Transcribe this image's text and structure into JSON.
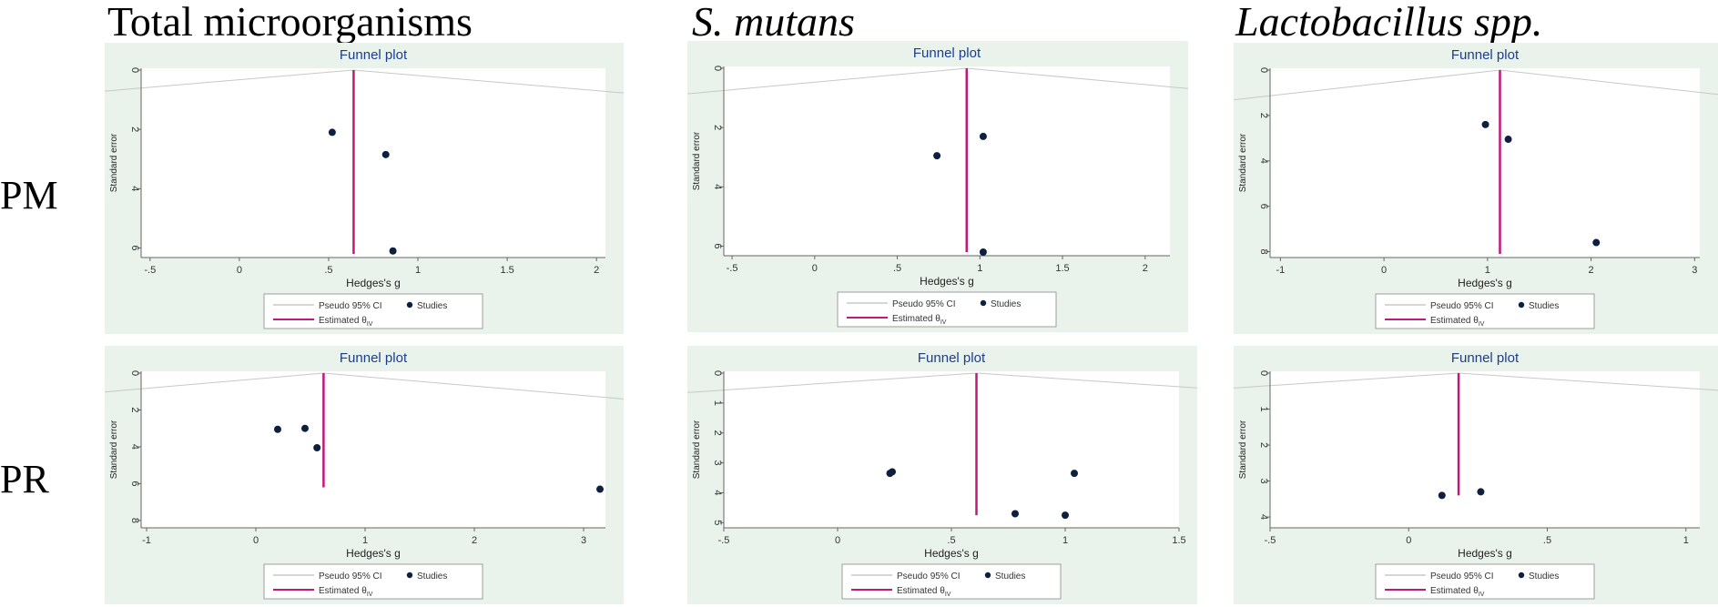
{
  "column_headers": [
    "Total microorganisms",
    "S. mutans",
    "Lactobacillus spp."
  ],
  "row_labels": [
    "PM",
    "PR"
  ],
  "colors": {
    "panel_bg": "#eaf2ec",
    "plot_bg": "#ffffff",
    "estimate_line": "#c0187c",
    "ci_line": "#c8c8c8",
    "study_dot": "#0e2040",
    "title": "#1a3e8c"
  },
  "chart_data": [
    {
      "id": "pm-total",
      "type": "scatter",
      "title": "Funnel plot",
      "xlabel": "Hedges's g",
      "ylabel": "Standard error",
      "xlim": [
        -0.55,
        2.05
      ],
      "ylim": [
        0,
        6.2
      ],
      "xticks": [
        -0.5,
        0,
        0.5,
        1,
        1.5,
        2
      ],
      "xtick_labels": [
        "-.5",
        "0",
        ".5",
        "1",
        "1.5",
        "2"
      ],
      "yticks": [
        0,
        2,
        4,
        6
      ],
      "ytick_labels": [
        "0",
        "2",
        "4",
        "6"
      ],
      "estimate": 0.64,
      "funnel_base": 6.2,
      "points": [
        {
          "x": 0.52,
          "y": 2.1
        },
        {
          "x": 0.82,
          "y": 2.85
        },
        {
          "x": 0.86,
          "y": 6.1
        }
      ],
      "legend": {
        "ci": "Pseudo 95% CI",
        "studies": "Studies",
        "est": "Estimated θ",
        "est_sub": "IV"
      }
    },
    {
      "id": "pm-smutans",
      "type": "scatter",
      "title": "Funnel plot",
      "xlabel": "Hedges's g",
      "ylabel": "Standard error",
      "xlim": [
        -0.55,
        2.15
      ],
      "ylim": [
        0,
        6.2
      ],
      "xticks": [
        -0.5,
        0,
        0.5,
        1,
        1.5,
        2
      ],
      "xtick_labels": [
        "-.5",
        "0",
        ".5",
        "1",
        "1.5",
        "2"
      ],
      "yticks": [
        0,
        2,
        4,
        6
      ],
      "ytick_labels": [
        "0",
        "2",
        "4",
        "6"
      ],
      "estimate": 0.92,
      "funnel_base": 6.2,
      "points": [
        {
          "x": 1.02,
          "y": 2.3
        },
        {
          "x": 0.74,
          "y": 2.95
        },
        {
          "x": 1.02,
          "y": 6.2
        }
      ],
      "legend": {
        "ci": "Pseudo 95% CI",
        "studies": "Studies",
        "est": "Estimated θ",
        "est_sub": "IV"
      }
    },
    {
      "id": "pm-lacto",
      "type": "scatter",
      "title": "Funnel plot",
      "xlabel": "Hedges's g",
      "ylabel": "Standard error",
      "xlim": [
        -1.1,
        3.05
      ],
      "ylim": [
        0,
        8.1
      ],
      "xticks": [
        -1,
        0,
        1,
        2,
        3
      ],
      "xtick_labels": [
        "-1",
        "0",
        "1",
        "2",
        "3"
      ],
      "yticks": [
        0,
        2,
        4,
        6,
        8
      ],
      "ytick_labels": [
        "0",
        "2",
        "4",
        "6",
        "8"
      ],
      "estimate": 1.12,
      "funnel_base": 8.1,
      "points": [
        {
          "x": 0.98,
          "y": 2.4
        },
        {
          "x": 1.2,
          "y": 3.05
        },
        {
          "x": 2.05,
          "y": 7.6
        }
      ],
      "legend": {
        "ci": "Pseudo 95% CI",
        "studies": "Studies",
        "est": "Estimated θ",
        "est_sub": "IV"
      }
    },
    {
      "id": "pr-total",
      "type": "scatter",
      "title": "Funnel plot",
      "xlabel": "Hedges's g",
      "ylabel": "Standard error",
      "xlim": [
        -1.05,
        3.2
      ],
      "ylim": [
        0,
        8.2
      ],
      "xticks": [
        -1,
        0,
        1,
        2,
        3
      ],
      "xtick_labels": [
        "-1",
        "0",
        "1",
        "2",
        "3"
      ],
      "yticks": [
        0,
        2,
        4,
        6,
        8
      ],
      "ytick_labels": [
        "0",
        "2",
        "4",
        "6",
        "8"
      ],
      "estimate": 0.62,
      "funnel_base": 6.2,
      "points": [
        {
          "x": 0.2,
          "y": 3.05
        },
        {
          "x": 0.45,
          "y": 3.0
        },
        {
          "x": 0.56,
          "y": 4.05
        },
        {
          "x": 3.15,
          "y": 6.3
        }
      ],
      "legend": {
        "ci": "Pseudo 95% CI",
        "studies": "Studies",
        "est": "Estimated θ",
        "est_sub": "IV"
      }
    },
    {
      "id": "pr-smutans",
      "type": "scatter",
      "title": "Funnel plot",
      "xlabel": "Hedges's g",
      "ylabel": "Standard error",
      "xlim": [
        -0.5,
        1.5
      ],
      "ylim": [
        0,
        5.05
      ],
      "xticks": [
        -0.5,
        0,
        0.5,
        1,
        1.5
      ],
      "xtick_labels": [
        "-.5",
        "0",
        ".5",
        "1",
        "1.5"
      ],
      "yticks": [
        0,
        1,
        2,
        3,
        4,
        5
      ],
      "ytick_labels": [
        "0",
        "1",
        "2",
        "3",
        "4",
        "5"
      ],
      "estimate": 0.61,
      "funnel_base": 4.75,
      "points": [
        {
          "x": 0.23,
          "y": 3.35
        },
        {
          "x": 0.24,
          "y": 3.3
        },
        {
          "x": 1.04,
          "y": 3.35
        },
        {
          "x": 0.78,
          "y": 4.7
        },
        {
          "x": 1.0,
          "y": 4.75
        }
      ],
      "legend": {
        "ci": "Pseudo 95% CI",
        "studies": "Studies",
        "est": "Estimated θ",
        "est_sub": "IV"
      }
    },
    {
      "id": "pr-lacto",
      "type": "scatter",
      "title": "Funnel plot",
      "xlabel": "Hedges's g",
      "ylabel": "Standard error",
      "xlim": [
        -0.5,
        1.05
      ],
      "ylim": [
        0,
        4.2
      ],
      "xticks": [
        -0.5,
        0,
        0.5,
        1
      ],
      "xtick_labels": [
        "-.5",
        "0",
        ".5",
        "1"
      ],
      "yticks": [
        0,
        1,
        2,
        3,
        4
      ],
      "ytick_labels": [
        "0",
        "1",
        "2",
        "3",
        "4"
      ],
      "estimate": 0.18,
      "funnel_base": 3.4,
      "points": [
        {
          "x": 0.12,
          "y": 3.4
        },
        {
          "x": 0.26,
          "y": 3.3
        }
      ],
      "legend": {
        "ci": "Pseudo 95% CI",
        "studies": "Studies",
        "est": "Estimated θ",
        "est_sub": "IV"
      }
    }
  ]
}
